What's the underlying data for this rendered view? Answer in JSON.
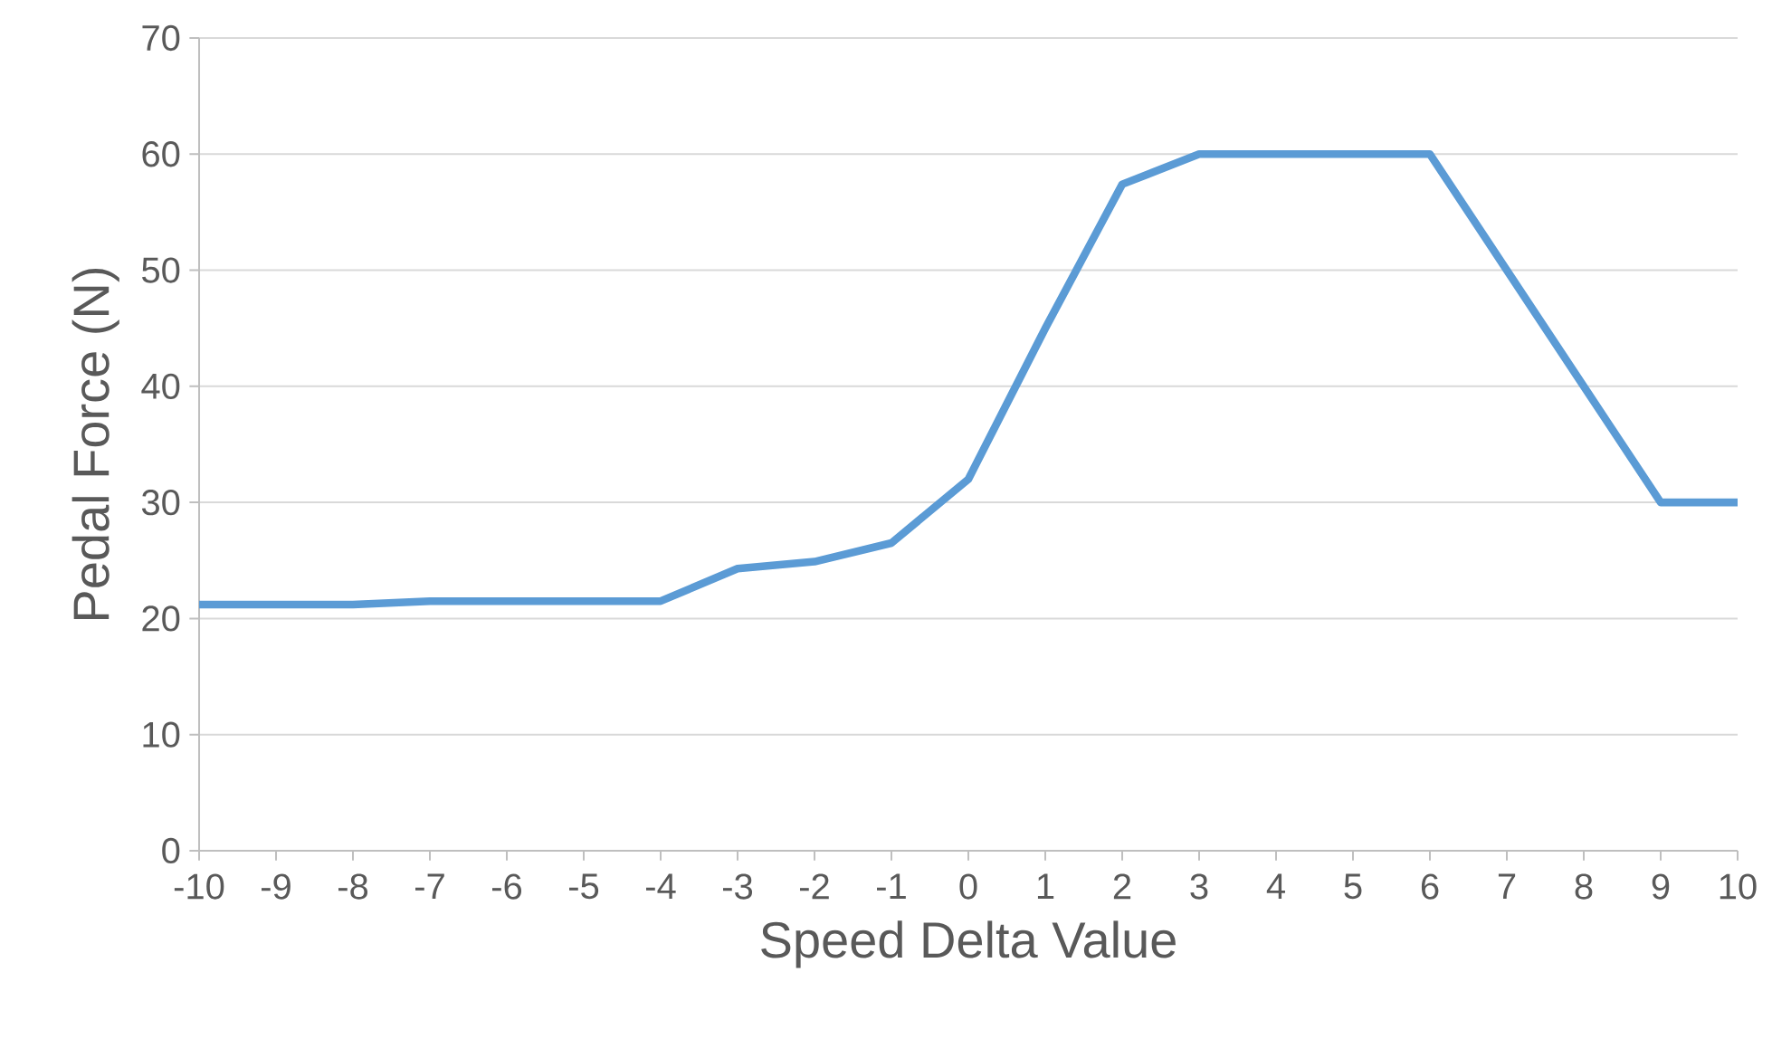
{
  "chart_data": {
    "type": "line",
    "xlabel": "Speed Delta Value",
    "ylabel": "Pedal Force (N)",
    "x": [
      -10,
      -9,
      -8,
      -7,
      -6,
      -5,
      -4,
      -3,
      -2,
      -1,
      0,
      1,
      2,
      3,
      4,
      5,
      6,
      7,
      8,
      9,
      10
    ],
    "series": [
      {
        "color": "#5b9bd5",
        "values": [
          21.2,
          21.2,
          21.2,
          21.5,
          21.5,
          21.5,
          21.5,
          24.3,
          24.9,
          26.5,
          32,
          45,
          57.4,
          60,
          60,
          60,
          60,
          50,
          40,
          30,
          30
        ]
      }
    ],
    "xlim": [
      -10,
      10
    ],
    "xticks": [
      -10,
      -9,
      -8,
      -7,
      -6,
      -5,
      -4,
      -3,
      -2,
      -1,
      0,
      1,
      2,
      3,
      4,
      5,
      6,
      7,
      8,
      9,
      10
    ],
    "ylim": [
      0,
      70
    ],
    "yticks": [
      0,
      10,
      20,
      30,
      40,
      50,
      60,
      70
    ],
    "grid": "y",
    "marker": "none",
    "line_style": "solid"
  }
}
